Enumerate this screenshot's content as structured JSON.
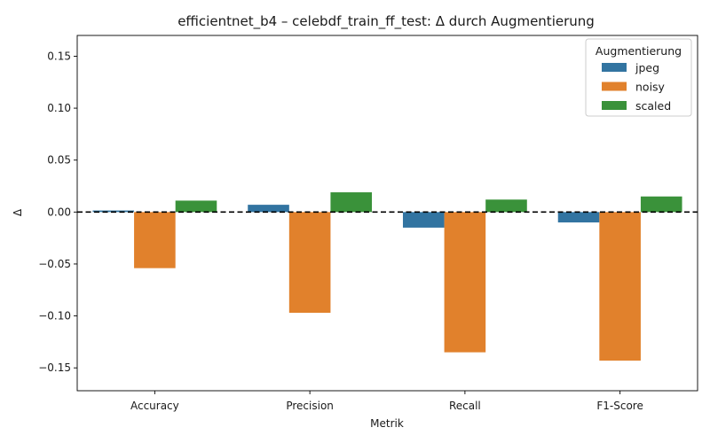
{
  "chart_data": {
    "type": "bar",
    "title": "efficientnet_b4 – celebdf_train_ff_test: Δ durch Augmentierung",
    "xlabel": "Metrik",
    "ylabel": "Δ",
    "categories": [
      "Accuracy",
      "Precision",
      "Recall",
      "F1-Score"
    ],
    "ylim": [
      -0.172,
      0.17
    ],
    "yticks": [
      -0.15,
      -0.1,
      -0.05,
      0.0,
      0.05,
      0.1,
      0.15
    ],
    "ytick_labels": [
      "−0.15",
      "−0.10",
      "−0.05",
      "0.00",
      "0.05",
      "0.10",
      "0.15"
    ],
    "grid": false,
    "reference_line": 0,
    "legend": {
      "title": "Augmentierung",
      "position": "top-right"
    },
    "series": [
      {
        "name": "jpeg",
        "color": "#3274a1",
        "values": [
          0.0015,
          0.007,
          -0.015,
          -0.01
        ]
      },
      {
        "name": "noisy",
        "color": "#e1812c",
        "values": [
          -0.054,
          -0.097,
          -0.135,
          -0.143
        ]
      },
      {
        "name": "scaled",
        "color": "#3a923a",
        "values": [
          0.011,
          0.019,
          0.012,
          0.015
        ]
      }
    ]
  }
}
